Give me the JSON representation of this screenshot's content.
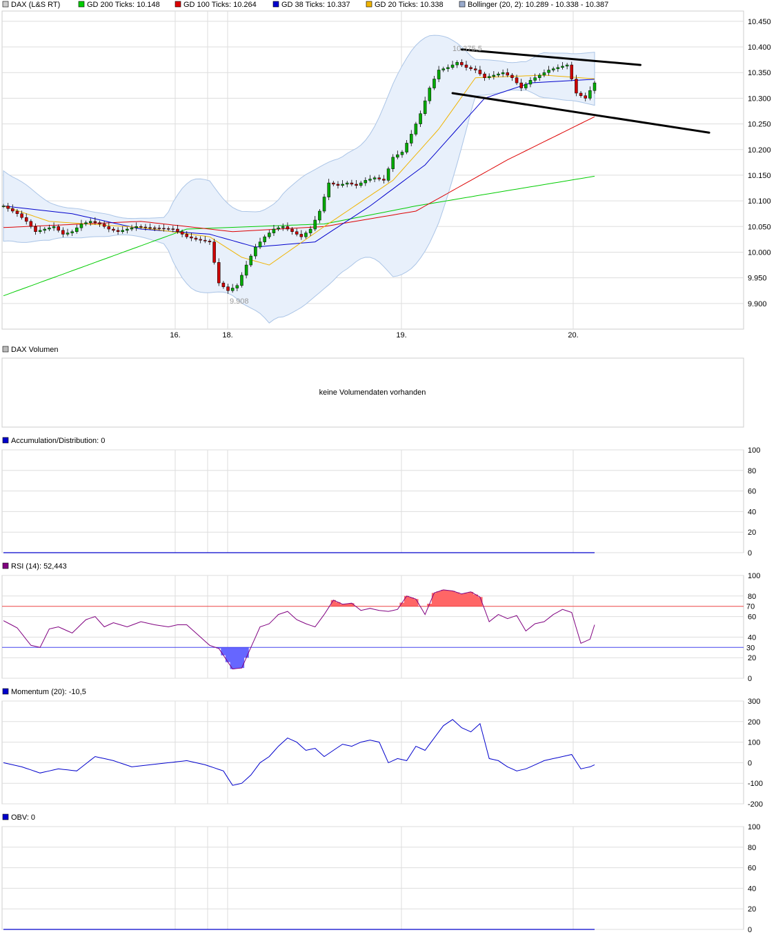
{
  "colors": {
    "gd200": "#00cc00",
    "gd100": "#dd0000",
    "gd38": "#0000cc",
    "gd20": "#f0b400",
    "bollinger": "#aac4e6",
    "bollinger_fill": "#e8f0fb",
    "rsi_line": "#800080",
    "rsi_over": "#ff6666",
    "rsi_under": "#6666ff",
    "grid": "#dddddd",
    "frame": "#cccccc"
  },
  "main_panel": {
    "legend": [
      {
        "label": "DAX (L&S RT)",
        "swatch": "#cccccc"
      },
      {
        "label": "GD 200 Ticks: 10.148",
        "swatch": "#00cc00"
      },
      {
        "label": "GD 100 Ticks: 10.264",
        "swatch": "#dd0000"
      },
      {
        "label": "GD 38 Ticks: 10.337",
        "swatch": "#0000cc"
      },
      {
        "label": "GD 20 Ticks: 10.338",
        "swatch": "#f0b400"
      },
      {
        "label": "Bollinger (20, 2): 10.289 - 10.338 - 10.387",
        "swatch": "#99aacc"
      }
    ],
    "y_ticks": [
      "10.450",
      "10.400",
      "10.350",
      "10.300",
      "10.250",
      "10.200",
      "10.150",
      "10.100",
      "10.050",
      "10.000",
      "9.950",
      "9.900"
    ],
    "x_ticks": [
      "16.",
      "18.",
      "19.",
      "20."
    ],
    "annotations": {
      "high": "10.375,5",
      "low": "9.908"
    }
  },
  "volume_panel": {
    "legend": {
      "label": "DAX Volumen",
      "swatch": "#bbbbbb"
    },
    "message": "keine Volumendaten vorhanden"
  },
  "ad_panel": {
    "legend": {
      "label": "Accumulation/Distribution: 0",
      "swatch": "#0000cc"
    },
    "y_ticks": [
      "100",
      "80",
      "60",
      "40",
      "20",
      "0"
    ]
  },
  "rsi_panel": {
    "legend": {
      "label": "RSI (14): 52,443",
      "swatch": "#800080"
    },
    "y_ticks": [
      "100",
      "80",
      "60",
      "40",
      "20",
      "0"
    ],
    "level_high": "70",
    "level_low": "30"
  },
  "momentum_panel": {
    "legend": {
      "label": "Momentum (20): -10,5",
      "swatch": "#0000cc"
    },
    "y_ticks": [
      "300",
      "200",
      "100",
      "0",
      "-100",
      "-200"
    ]
  },
  "obv_panel": {
    "legend": {
      "label": "OBV: 0",
      "swatch": "#0000cc"
    },
    "y_ticks": [
      "100",
      "80",
      "60",
      "40",
      "20",
      "0"
    ]
  },
  "chart_data": [
    {
      "type": "line",
      "series_kind": "candlestick_with_moving_averages",
      "x_ticks": [
        "16.",
        "18.",
        "19.",
        "20."
      ],
      "ylim": [
        9.85,
        10.47
      ],
      "price_anchors": [
        [
          0,
          10.09
        ],
        [
          3,
          10.075
        ],
        [
          5,
          10.06
        ],
        [
          7,
          10.04
        ],
        [
          9,
          10.045
        ],
        [
          11,
          10.05
        ],
        [
          13,
          10.035
        ],
        [
          15,
          10.04
        ],
        [
          17,
          10.055
        ],
        [
          19,
          10.06
        ],
        [
          21,
          10.055
        ],
        [
          23,
          10.045
        ],
        [
          25,
          10.04
        ],
        [
          27,
          10.045
        ],
        [
          29,
          10.05
        ],
        [
          31,
          10.048
        ],
        [
          33,
          10.047
        ],
        [
          35,
          10.046
        ],
        [
          37,
          10.045
        ],
        [
          40,
          10.03
        ],
        [
          42,
          10.025
        ],
        [
          45,
          10.02
        ],
        [
          47,
          9.94
        ],
        [
          49,
          9.925
        ],
        [
          51,
          9.935
        ],
        [
          53,
          9.975
        ],
        [
          55,
          10.01
        ],
        [
          57,
          10.03
        ],
        [
          59,
          10.045
        ],
        [
          61,
          10.05
        ],
        [
          63,
          10.04
        ],
        [
          65,
          10.03
        ],
        [
          67,
          10.045
        ],
        [
          69,
          10.08
        ],
        [
          71,
          10.135
        ],
        [
          73,
          10.13
        ],
        [
          75,
          10.135
        ],
        [
          77,
          10.13
        ],
        [
          79,
          10.14
        ],
        [
          81,
          10.145
        ],
        [
          83,
          10.14
        ],
        [
          85,
          10.185
        ],
        [
          87,
          10.195
        ],
        [
          89,
          10.23
        ],
        [
          91,
          10.27
        ],
        [
          93,
          10.32
        ],
        [
          95,
          10.355
        ],
        [
          97,
          10.36
        ],
        [
          99,
          10.37
        ],
        [
          101,
          10.36
        ],
        [
          103,
          10.355
        ],
        [
          105,
          10.34
        ],
        [
          107,
          10.345
        ],
        [
          109,
          10.35
        ],
        [
          111,
          10.34
        ],
        [
          113,
          10.32
        ],
        [
          115,
          10.335
        ],
        [
          117,
          10.345
        ],
        [
          119,
          10.355
        ],
        [
          121,
          10.36
        ],
        [
          123,
          10.365
        ],
        [
          125,
          10.31
        ],
        [
          127,
          10.3
        ],
        [
          129,
          10.33
        ]
      ],
      "moving_averages": {
        "GD 200 Ticks": [
          [
            0,
            9.915
          ],
          [
            40,
            10.045
          ],
          [
            70,
            10.055
          ],
          [
            90,
            10.09
          ],
          [
            110,
            10.12
          ],
          [
            129,
            10.148
          ]
        ],
        "GD 100 Ticks": [
          [
            0,
            10.048
          ],
          [
            30,
            10.06
          ],
          [
            50,
            10.04
          ],
          [
            70,
            10.05
          ],
          [
            90,
            10.08
          ],
          [
            110,
            10.18
          ],
          [
            129,
            10.264
          ]
        ],
        "GD 38 Ticks": [
          [
            0,
            10.09
          ],
          [
            15,
            10.075
          ],
          [
            30,
            10.045
          ],
          [
            45,
            10.035
          ],
          [
            55,
            10.01
          ],
          [
            68,
            10.02
          ],
          [
            80,
            10.09
          ],
          [
            92,
            10.17
          ],
          [
            105,
            10.3
          ],
          [
            115,
            10.33
          ],
          [
            129,
            10.337
          ]
        ],
        "GD 20 Ticks": [
          [
            0,
            10.09
          ],
          [
            10,
            10.06
          ],
          [
            30,
            10.048
          ],
          [
            45,
            10.03
          ],
          [
            52,
            9.99
          ],
          [
            58,
            9.975
          ],
          [
            70,
            10.05
          ],
          [
            85,
            10.14
          ],
          [
            95,
            10.24
          ],
          [
            103,
            10.34
          ],
          [
            118,
            10.345
          ],
          [
            129,
            10.338
          ]
        ]
      },
      "bollinger": {
        "lower": 10.289,
        "middle": 10.338,
        "upper": 10.387
      },
      "trendlines": [
        {
          "from": [
            100,
            10.395
          ],
          "to": [
            139,
            10.365
          ]
        },
        {
          "from": [
            98,
            10.31
          ],
          "to": [
            154,
            10.233
          ]
        }
      ],
      "annotations": {
        "high": "10.375,5",
        "low": "9.908"
      }
    },
    {
      "type": "line",
      "name": "RSI (14)",
      "ylim": [
        0,
        100
      ],
      "levels": [
        70,
        30
      ],
      "last": 52.443,
      "anchors": [
        [
          0,
          56
        ],
        [
          3,
          49
        ],
        [
          6,
          32
        ],
        [
          8,
          30
        ],
        [
          10,
          48
        ],
        [
          12,
          50
        ],
        [
          15,
          44
        ],
        [
          18,
          57
        ],
        [
          20,
          60
        ],
        [
          22,
          50
        ],
        [
          24,
          54
        ],
        [
          27,
          50
        ],
        [
          30,
          55
        ],
        [
          33,
          52
        ],
        [
          36,
          50
        ],
        [
          38,
          52
        ],
        [
          40,
          52
        ],
        [
          45,
          32
        ],
        [
          47,
          29
        ],
        [
          50,
          9
        ],
        [
          52,
          10
        ],
        [
          54,
          30
        ],
        [
          56,
          50
        ],
        [
          58,
          53
        ],
        [
          60,
          62
        ],
        [
          62,
          65
        ],
        [
          64,
          57
        ],
        [
          66,
          53
        ],
        [
          68,
          50
        ],
        [
          70,
          62
        ],
        [
          72,
          76
        ],
        [
          74,
          72
        ],
        [
          76,
          73
        ],
        [
          78,
          66
        ],
        [
          80,
          68
        ],
        [
          82,
          66
        ],
        [
          84,
          65
        ],
        [
          86,
          67
        ],
        [
          88,
          80
        ],
        [
          90,
          77
        ],
        [
          92,
          62
        ],
        [
          94,
          83
        ],
        [
          96,
          86
        ],
        [
          98,
          85
        ],
        [
          100,
          82
        ],
        [
          102,
          84
        ],
        [
          104,
          79
        ],
        [
          106,
          55
        ],
        [
          108,
          62
        ],
        [
          110,
          58
        ],
        [
          112,
          61
        ],
        [
          114,
          46
        ],
        [
          116,
          53
        ],
        [
          118,
          55
        ],
        [
          120,
          62
        ],
        [
          122,
          67
        ],
        [
          124,
          64
        ],
        [
          126,
          34
        ],
        [
          128,
          38
        ],
        [
          129,
          52
        ]
      ]
    },
    {
      "type": "line",
      "name": "Momentum (20)",
      "ylim": [
        -200,
        300
      ],
      "last": -10.5,
      "anchors": [
        [
          0,
          0
        ],
        [
          4,
          -20
        ],
        [
          8,
          -50
        ],
        [
          12,
          -30
        ],
        [
          16,
          -40
        ],
        [
          20,
          30
        ],
        [
          24,
          10
        ],
        [
          28,
          -20
        ],
        [
          32,
          -10
        ],
        [
          36,
          0
        ],
        [
          40,
          10
        ],
        [
          44,
          -10
        ],
        [
          48,
          -40
        ],
        [
          50,
          -110
        ],
        [
          52,
          -100
        ],
        [
          54,
          -60
        ],
        [
          56,
          0
        ],
        [
          58,
          30
        ],
        [
          60,
          80
        ],
        [
          62,
          120
        ],
        [
          64,
          100
        ],
        [
          66,
          60
        ],
        [
          68,
          70
        ],
        [
          70,
          30
        ],
        [
          72,
          60
        ],
        [
          74,
          90
        ],
        [
          76,
          80
        ],
        [
          78,
          100
        ],
        [
          80,
          110
        ],
        [
          82,
          100
        ],
        [
          84,
          0
        ],
        [
          86,
          20
        ],
        [
          88,
          10
        ],
        [
          90,
          80
        ],
        [
          92,
          60
        ],
        [
          94,
          120
        ],
        [
          96,
          180
        ],
        [
          98,
          210
        ],
        [
          100,
          170
        ],
        [
          102,
          150
        ],
        [
          104,
          190
        ],
        [
          106,
          20
        ],
        [
          108,
          10
        ],
        [
          110,
          -20
        ],
        [
          112,
          -40
        ],
        [
          114,
          -30
        ],
        [
          116,
          -10
        ],
        [
          118,
          10
        ],
        [
          120,
          20
        ],
        [
          122,
          30
        ],
        [
          124,
          40
        ],
        [
          126,
          -30
        ],
        [
          128,
          -20
        ],
        [
          129,
          -10
        ]
      ]
    },
    {
      "type": "line",
      "name": "Accumulation/Distribution",
      "ylim": [
        0,
        100
      ],
      "last": 0
    },
    {
      "type": "line",
      "name": "OBV",
      "ylim": [
        0,
        100
      ],
      "last": 0
    }
  ]
}
